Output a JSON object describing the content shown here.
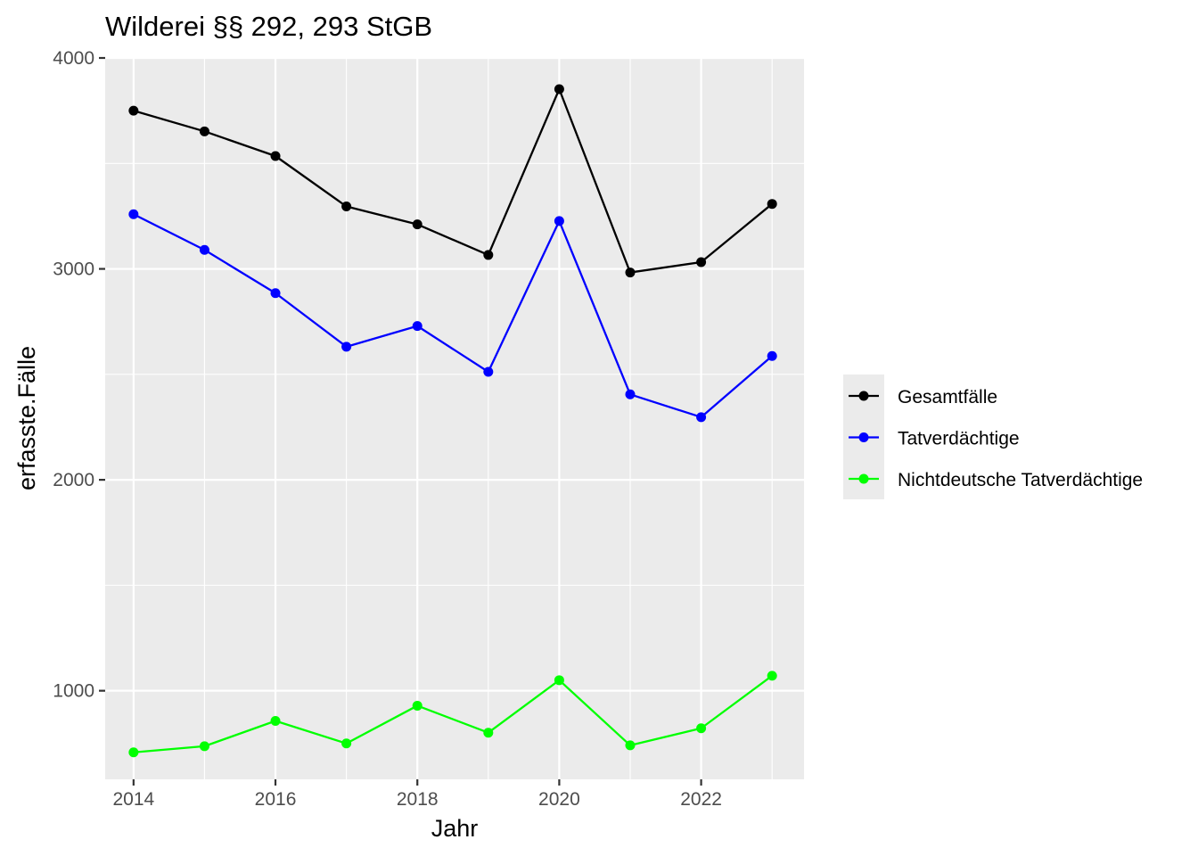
{
  "chart_data": {
    "type": "line",
    "title": "Wilderei §§ 292, 293 StGB",
    "xlabel": "Jahr",
    "ylabel": "erfasste.Fälle",
    "x": [
      2014,
      2015,
      2016,
      2017,
      2018,
      2019,
      2020,
      2021,
      2022,
      2023
    ],
    "xticks": [
      2014,
      2016,
      2018,
      2020,
      2022
    ],
    "xlim": [
      2013.6,
      2023.45
    ],
    "yticks": [
      1000,
      2000,
      3000,
      4000
    ],
    "ylim": [
      580,
      4000
    ],
    "grid": true,
    "legend_position": "right",
    "series": [
      {
        "name": "Gesamtfälle",
        "color": "#000000",
        "values": [
          3750,
          3652,
          3535,
          3296,
          3211,
          3066,
          3852,
          2983,
          3032,
          3308
        ]
      },
      {
        "name": "Tatverdächtige",
        "color": "#0000ff",
        "values": [
          3259,
          3090,
          2885,
          2631,
          2729,
          2512,
          3227,
          2405,
          2297,
          2587
        ]
      },
      {
        "name": "Nichtdeutsche Tatverdächtige",
        "color": "#00ff00",
        "values": [
          708,
          737,
          857,
          750,
          929,
          801,
          1050,
          741,
          822,
          1071
        ]
      }
    ]
  }
}
